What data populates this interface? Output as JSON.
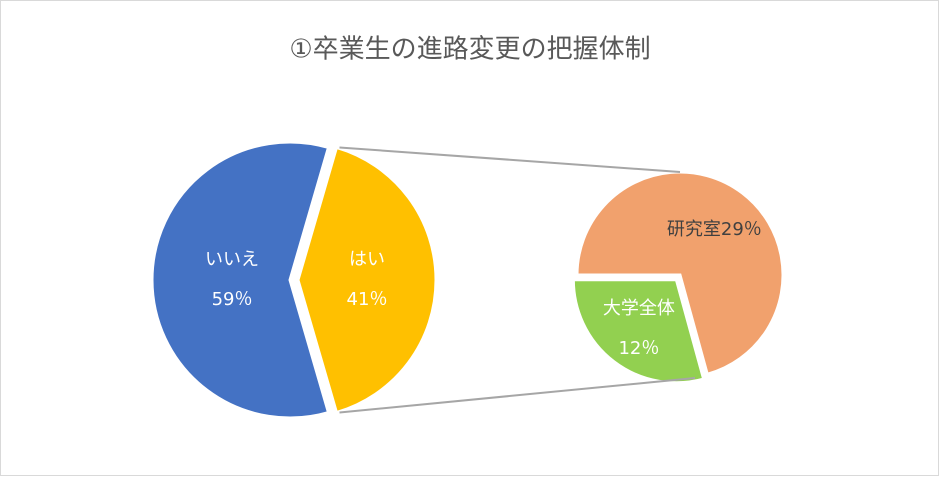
{
  "chart_data": {
    "type": "pie-of-pie",
    "title": "①卒業生の進路変更の把握体制",
    "categories": [
      "いいえ",
      "はい"
    ],
    "values": [
      59,
      41
    ],
    "value_labels": [
      "59％",
      "41％"
    ],
    "colors": [
      "#4472c4",
      "#ffc000"
    ],
    "secondary": {
      "categories": [
        "研究室",
        "大学全体"
      ],
      "values": [
        29,
        12
      ],
      "value_labels": [
        "29％",
        "12％"
      ],
      "colors": [
        "#f1a16d",
        "#92d050"
      ]
    }
  }
}
